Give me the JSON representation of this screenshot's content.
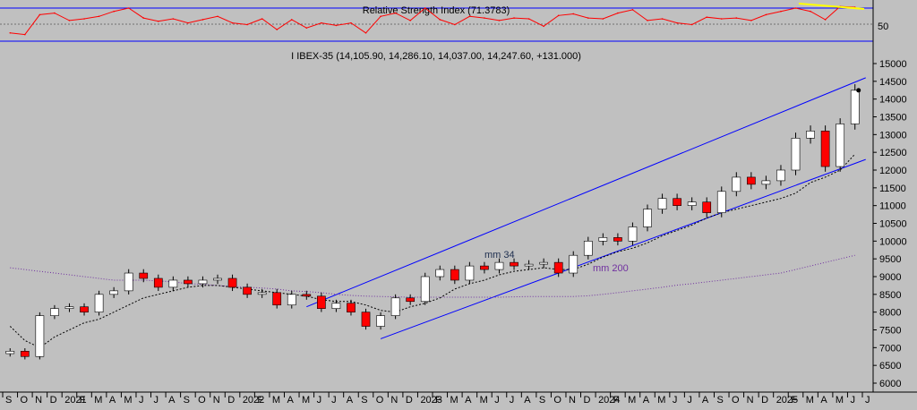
{
  "rsi_panel": {
    "title": "Relative Strength Index (71.3783)",
    "tick_labels": [
      "50"
    ],
    "chart_data": {
      "type": "line",
      "title": "Relative Strength Index (71.3783)",
      "last_value": 71.3783,
      "bands": [
        70,
        30
      ],
      "x": [
        "2020-09",
        "2020-10",
        "2020-11",
        "2020-12",
        "2021-01",
        "2021-02",
        "2021-03",
        "2021-04",
        "2021-05",
        "2021-06",
        "2021-07",
        "2021-08",
        "2021-09",
        "2021-10",
        "2021-11",
        "2021-12",
        "2022-01",
        "2022-02",
        "2022-03",
        "2022-04",
        "2022-05",
        "2022-06",
        "2022-07",
        "2022-08",
        "2022-09",
        "2022-10",
        "2022-11",
        "2022-12",
        "2023-01",
        "2023-02",
        "2023-03",
        "2023-04",
        "2023-05",
        "2023-06",
        "2023-07",
        "2023-08",
        "2023-09",
        "2023-10",
        "2023-11",
        "2023-12",
        "2024-01",
        "2024-02",
        "2024-03",
        "2024-04",
        "2024-05",
        "2024-06",
        "2024-07",
        "2024-08",
        "2024-09",
        "2024-10",
        "2024-11",
        "2024-12",
        "2025-01",
        "2025-02",
        "2025-03",
        "2025-04",
        "2025-05",
        "2025-06"
      ],
      "values": [
        40,
        38,
        62,
        64,
        55,
        57,
        60,
        66,
        70,
        58,
        54,
        57,
        52,
        56,
        60,
        52,
        50,
        57,
        44,
        56,
        46,
        52,
        49,
        52,
        40,
        60,
        64,
        55,
        70,
        56,
        50,
        60,
        58,
        55,
        58,
        57,
        48,
        61,
        63,
        58,
        57,
        64,
        68,
        55,
        57,
        52,
        50,
        59,
        57,
        58,
        55,
        62,
        66,
        70,
        66,
        56,
        72,
        71
      ]
    }
  },
  "main_panel": {
    "title": "I IBEX-35 (14,105.90, 14,286.10, 14,037.00, 14,247.60, +131.000)",
    "annotations": {
      "mm34": "mm 34",
      "mm200": "mm 200"
    },
    "chart_data": {
      "type": "line",
      "title": "I IBEX-35 (14,105.90, 14,286.10, 14,037.00, 14,247.60, +131.000)",
      "series_type": "candlestick",
      "last_bar": {
        "open": 14105.9,
        "high": 14286.1,
        "low": 14037.0,
        "close": 14247.6,
        "change": 131.0
      },
      "ylim": [
        6000,
        15000
      ],
      "y_ticks": [
        6000,
        6500,
        7000,
        7500,
        8000,
        8500,
        9000,
        9500,
        10000,
        10500,
        11000,
        11500,
        12000,
        12500,
        13000,
        13500,
        14000,
        14500,
        15000
      ],
      "x_ticks": [
        "S",
        "O",
        "N",
        "D",
        "2021",
        "F",
        "M",
        "A",
        "M",
        "J",
        "J",
        "A",
        "S",
        "O",
        "N",
        "D",
        "2022",
        "F",
        "M",
        "A",
        "M",
        "J",
        "J",
        "A",
        "S",
        "O",
        "N",
        "D",
        "2023",
        "F",
        "M",
        "A",
        "M",
        "J",
        "J",
        "A",
        "S",
        "O",
        "N",
        "D",
        "2024",
        "F",
        "M",
        "A",
        "M",
        "J",
        "J",
        "A",
        "S",
        "O",
        "N",
        "D",
        "2025",
        "F",
        "M",
        "A",
        "M",
        "J",
        "J"
      ],
      "x": [
        "2020-09",
        "2020-10",
        "2020-11",
        "2020-12",
        "2021-01",
        "2021-02",
        "2021-03",
        "2021-04",
        "2021-05",
        "2021-06",
        "2021-07",
        "2021-08",
        "2021-09",
        "2021-10",
        "2021-11",
        "2021-12",
        "2022-01",
        "2022-02",
        "2022-03",
        "2022-04",
        "2022-05",
        "2022-06",
        "2022-07",
        "2022-08",
        "2022-09",
        "2022-10",
        "2022-11",
        "2022-12",
        "2023-01",
        "2023-02",
        "2023-03",
        "2023-04",
        "2023-05",
        "2023-06",
        "2023-07",
        "2023-08",
        "2023-09",
        "2023-10",
        "2023-11",
        "2023-12",
        "2024-01",
        "2024-02",
        "2024-03",
        "2024-04",
        "2024-05",
        "2024-06",
        "2024-07",
        "2024-08",
        "2024-09",
        "2024-10",
        "2024-11",
        "2024-12",
        "2025-01",
        "2025-02",
        "2025-03",
        "2025-04",
        "2025-05",
        "2025-06"
      ],
      "series": [
        {
          "name": "I IBEX-35",
          "color": "#000000",
          "values": [
            6900,
            6750,
            7900,
            8100,
            8150,
            8000,
            8500,
            8600,
            9100,
            8950,
            8700,
            8900,
            8800,
            8900,
            8950,
            8700,
            8500,
            8550,
            8200,
            8500,
            8450,
            8100,
            8250,
            8000,
            7600,
            7900,
            8400,
            8300,
            9000,
            9200,
            8900,
            9300,
            9200,
            9400,
            9300,
            9350,
            9400,
            9100,
            9600,
            10000,
            10100,
            10000,
            10400,
            10900,
            11200,
            11000,
            11100,
            10800,
            11400,
            11800,
            11600,
            11700,
            12000,
            12900,
            13100,
            12100,
            13300,
            14247.6
          ]
        },
        {
          "name": "mm 34",
          "color": "#000000",
          "values": [
            7600,
            7200,
            7000,
            7300,
            7500,
            7700,
            7800,
            8000,
            8200,
            8400,
            8500,
            8600,
            8700,
            8750,
            8750,
            8700,
            8650,
            8600,
            8550,
            8500,
            8450,
            8350,
            8300,
            8300,
            8200,
            8050,
            8000,
            8150,
            8250,
            8400,
            8650,
            8800,
            8900,
            9050,
            9150,
            9200,
            9250,
            9200,
            9200,
            9350,
            9550,
            9700,
            9800,
            9950,
            10150,
            10300,
            10450,
            10650,
            10800,
            10900,
            11000,
            11100,
            11200,
            11350,
            11650,
            11800,
            12000,
            12450
          ]
        },
        {
          "name": "mm 200",
          "color": "#7030a0",
          "values": [
            9250,
            9200,
            9150,
            9100,
            9050,
            9000,
            8950,
            8900,
            8900,
            8900,
            8880,
            8850,
            8800,
            8780,
            8750,
            8720,
            8700,
            8680,
            8650,
            8600,
            8580,
            8550,
            8500,
            8470,
            8450,
            8440,
            8430,
            8420,
            8420,
            8420,
            8420,
            8420,
            8420,
            8420,
            8430,
            8440,
            8440,
            8440,
            8440,
            8460,
            8500,
            8550,
            8600,
            8650,
            8700,
            8760,
            8800,
            8850,
            8900,
            8950,
            9000,
            9050,
            9100,
            9200,
            9300,
            9400,
            9500,
            9600
          ]
        }
      ],
      "trend_channel": {
        "upper": [
          [
            "2022-05",
            8150
          ],
          [
            "2025-06",
            14600
          ]
        ],
        "lower": [
          [
            "2022-10",
            7250
          ],
          [
            "2025-06",
            12300
          ]
        ]
      }
    }
  },
  "colors": {
    "background": "#c0c0c0",
    "up_candle": "#ffffff",
    "down_candle": "#ff0000",
    "channel": "#0000ff",
    "mm200": "#7030a0",
    "rsi_line": "#ff0000",
    "rsi_trend": "#ffff00"
  }
}
